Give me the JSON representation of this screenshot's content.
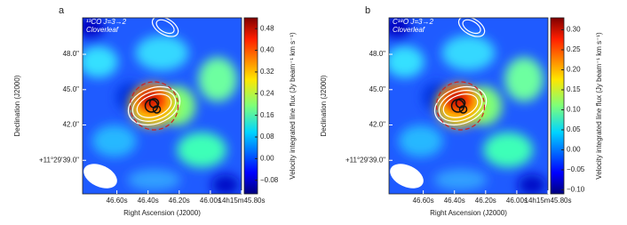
{
  "chart_data": [
    {
      "type": "map",
      "panel": "a",
      "annotation": [
        "¹³CO J=3→2",
        "Cloverleaf"
      ],
      "xlabel": "Right Ascension (J2000)",
      "ylabel": "Declination (J2000)",
      "xlim": [
        46.82,
        45.8
      ],
      "xticks": [
        {
          "value": 46.6,
          "label": "46.60s"
        },
        {
          "value": 46.4,
          "label": "46.40s"
        },
        {
          "value": 46.2,
          "label": "46.20s"
        },
        {
          "value": 46.0,
          "label": "46.00s"
        },
        {
          "value": 45.8,
          "label": "14h15m45.80s"
        }
      ],
      "ylim": [
        36.15,
        51.1
      ],
      "yticks": [
        {
          "value": 48,
          "label": "48.0\""
        },
        {
          "value": 45,
          "label": "45.0\""
        },
        {
          "value": 42,
          "label": "42.0\""
        },
        {
          "value": 39,
          "label": "+11°29'39.0\""
        }
      ],
      "colorbar_label": "Velocity integrated line flux (Jy beam⁻¹ km s⁻¹)",
      "clim": [
        -0.13,
        0.52
      ],
      "cticks": [
        {
          "value": 0.48,
          "label": "0.48"
        },
        {
          "value": 0.4,
          "label": "0.40"
        },
        {
          "value": 0.32,
          "label": "0.32"
        },
        {
          "value": 0.24,
          "label": "0.24"
        },
        {
          "value": 0.16,
          "label": "0.16"
        },
        {
          "value": 0.08,
          "label": "0.08"
        },
        {
          "value": 0,
          "label": "0.00"
        },
        {
          "value": -0.08,
          "label": "−0.08"
        }
      ]
    },
    {
      "type": "map",
      "panel": "b",
      "annotation": [
        "C¹⁸O J=3→2",
        "Cloverleaf"
      ],
      "xlabel": "Right Ascension (J2000)",
      "ylabel": "Declination (J2000)",
      "xlim": [
        46.82,
        45.8
      ],
      "xticks": [
        {
          "value": 46.6,
          "label": "46.60s"
        },
        {
          "value": 46.4,
          "label": "46.40s"
        },
        {
          "value": 46.2,
          "label": "46.20s"
        },
        {
          "value": 46.0,
          "label": "46.00s"
        },
        {
          "value": 45.8,
          "label": "14h15m45.80s"
        }
      ],
      "ylim": [
        36.15,
        51.1
      ],
      "yticks": [
        {
          "value": 48,
          "label": "48.0\""
        },
        {
          "value": 45,
          "label": "45.0\""
        },
        {
          "value": 42,
          "label": "42.0\""
        },
        {
          "value": 39,
          "label": "+11°29'39.0\""
        }
      ],
      "colorbar_label": "Velocity integrated line flux (Jy beam⁻¹ km s⁻¹)",
      "clim": [
        -0.11,
        0.33
      ],
      "cticks": [
        {
          "value": 0.3,
          "label": "0.30"
        },
        {
          "value": 0.25,
          "label": "0.25"
        },
        {
          "value": 0.2,
          "label": "0.20"
        },
        {
          "value": 0.15,
          "label": "0.15"
        },
        {
          "value": 0.1,
          "label": "0.10"
        },
        {
          "value": 0.05,
          "label": "0.05"
        },
        {
          "value": 0,
          "label": "0.00"
        },
        {
          "value": -0.05,
          "label": "−0.05"
        },
        {
          "value": -0.1,
          "label": "−0.10"
        }
      ]
    }
  ]
}
